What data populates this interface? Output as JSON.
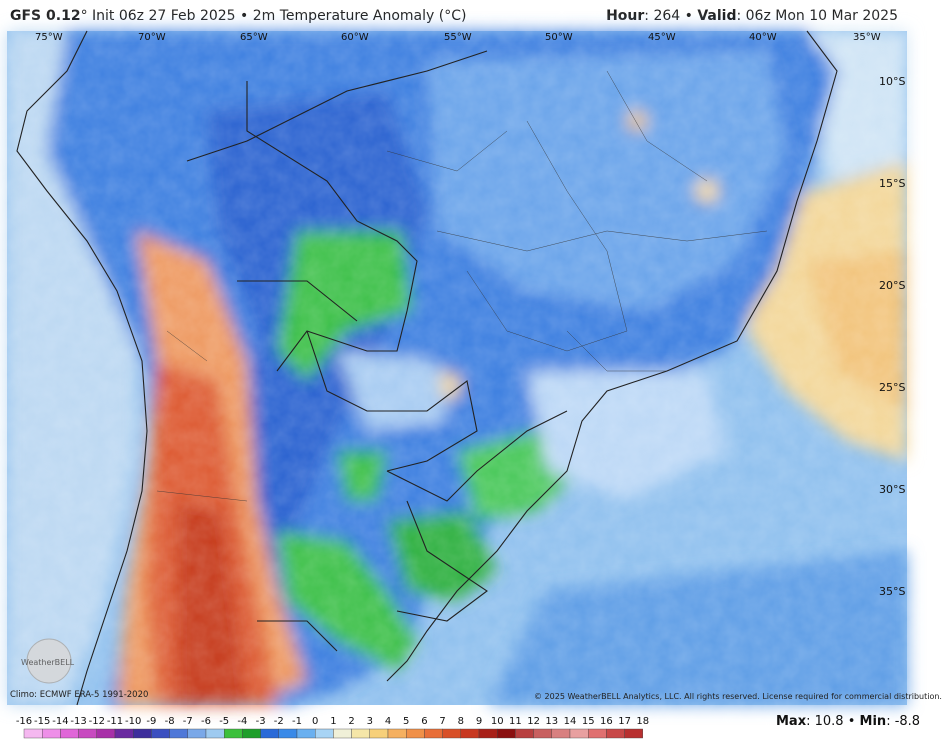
{
  "header": {
    "model": "GFS 0.12",
    "init": "° Init 06z 27 Feb 2025",
    "sep": "•",
    "product": "2m Temperature Anomaly (°C)",
    "hour_label": "Hour",
    "hour_value": ": 264",
    "valid_label": "Valid",
    "valid_value": ": 06z Mon 10 Mar 2025"
  },
  "map": {
    "lon_labels": [
      "75°W",
      "70°W",
      "65°W",
      "60°W",
      "55°W",
      "50°W",
      "45°W",
      "40°W",
      "35°W"
    ],
    "lat_labels": [
      "10°S",
      "15°S",
      "20°S",
      "25°S",
      "30°S",
      "35°S"
    ],
    "logo_text": "WeatherBELL"
  },
  "footer": {
    "climo": "Climo: ECMWF ERA-5 1991-2020",
    "copyright": "© 2025 WeatherBELL Analytics, LLC. All rights reserved. License required for commercial distribution.",
    "max_label": "Max",
    "max_value": ": 10.8",
    "min_label": "Min",
    "min_value": ": -8.8",
    "sep": "•"
  },
  "colorbar": {
    "labels": [
      "-16",
      "-15",
      "-14",
      "-13",
      "-12",
      "-11",
      "-10",
      "-9",
      "-8",
      "-7",
      "-6",
      "-5",
      "-4",
      "-3",
      "-2",
      "-1",
      "0",
      "1",
      "2",
      "3",
      "4",
      "5",
      "6",
      "7",
      "8",
      "9",
      "10",
      "11",
      "12",
      "13",
      "14",
      "15",
      "16",
      "17",
      "18"
    ],
    "colors": [
      "#f5b8f0",
      "#ee8fe8",
      "#e066d8",
      "#c84ac0",
      "#a830a8",
      "#6a2aa0",
      "#3d2e9c",
      "#3b4fc0",
      "#4f78d8",
      "#7aa8e8",
      "#9ecaf0",
      "#3cc03c",
      "#1e9e2a",
      "#2a6ad8",
      "#3a8ae8",
      "#6ab0f0",
      "#a8d4f5",
      "#f0f0d8",
      "#f5e6a8",
      "#f7d07a",
      "#f5b060",
      "#f09048",
      "#e86e38",
      "#d85028",
      "#c83820",
      "#a82018",
      "#8a1010",
      "#b84040",
      "#c86060",
      "#d88080",
      "#e8a0a0",
      "#e07070",
      "#c84848",
      "#b83030"
    ]
  }
}
